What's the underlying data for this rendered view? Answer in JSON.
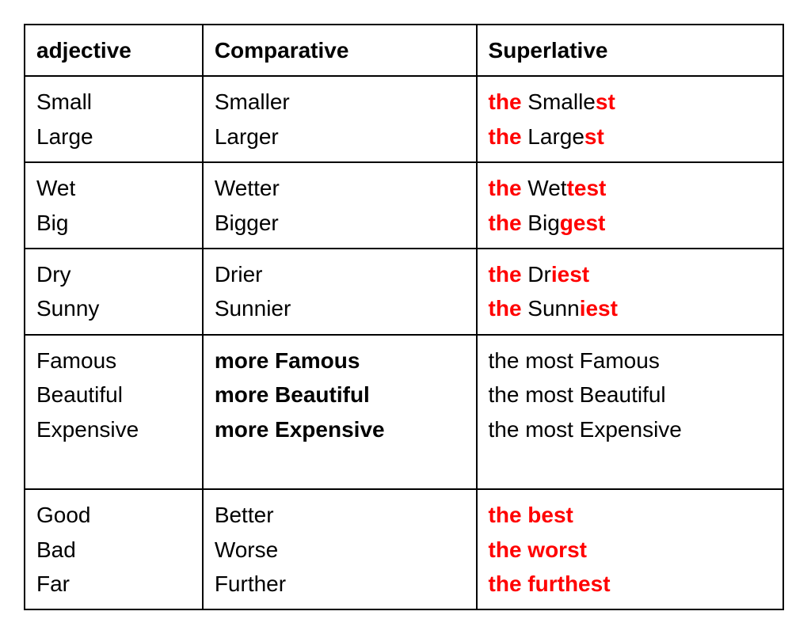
{
  "table": {
    "columns": [
      "adjective",
      "Comparative",
      "Superlative"
    ],
    "col_widths": [
      "33%",
      "33%",
      "34%"
    ],
    "border_color": "#000000",
    "background_color": "#ffffff",
    "text_color": "#000000",
    "highlight_color": "#ff0000",
    "fontsize": 28,
    "groups": [
      {
        "adj": [
          {
            "text": "Small"
          },
          {
            "text": "Large"
          }
        ],
        "comp": [
          {
            "text": "Smaller"
          },
          {
            "text": "Larger"
          }
        ],
        "sup": [
          {
            "segments": [
              {
                "t": "the ",
                "red": true,
                "bold": true
              },
              {
                "t": "Smalle"
              },
              {
                "t": "st",
                "red": true,
                "bold": true
              }
            ]
          },
          {
            "segments": [
              {
                "t": "the ",
                "red": true,
                "bold": true
              },
              {
                "t": "Large"
              },
              {
                "t": "st",
                "red": true,
                "bold": true
              }
            ]
          }
        ]
      },
      {
        "adj": [
          {
            "text": "Wet"
          },
          {
            "text": "Big"
          }
        ],
        "comp": [
          {
            "text": "Wetter"
          },
          {
            "text": "Bigger"
          }
        ],
        "sup": [
          {
            "segments": [
              {
                "t": "the ",
                "red": true,
                "bold": true
              },
              {
                "t": "Wet"
              },
              {
                "t": "test",
                "red": true,
                "bold": true
              }
            ]
          },
          {
            "segments": [
              {
                "t": "the ",
                "red": true,
                "bold": true
              },
              {
                "t": "Big"
              },
              {
                "t": "gest",
                "red": true,
                "bold": true
              }
            ]
          }
        ]
      },
      {
        "adj": [
          {
            "text": "Dry"
          },
          {
            "text": "Sunny"
          }
        ],
        "comp": [
          {
            "text": "Drier"
          },
          {
            "text": "Sunnier"
          }
        ],
        "sup": [
          {
            "segments": [
              {
                "t": "the ",
                "red": true,
                "bold": true
              },
              {
                "t": "Dr"
              },
              {
                "t": "iest",
                "red": true,
                "bold": true
              }
            ]
          },
          {
            "segments": [
              {
                "t": "the ",
                "red": true,
                "bold": true
              },
              {
                "t": "Sunn"
              },
              {
                "t": "iest",
                "red": true,
                "bold": true
              }
            ]
          }
        ]
      },
      {
        "adj": [
          {
            "text": "Famous"
          },
          {
            "text": "Beautiful"
          },
          {
            "text": "Expensive"
          },
          {
            "text": " "
          }
        ],
        "comp": [
          {
            "text": "more Famous",
            "bold": true
          },
          {
            "text": "more Beautiful",
            "bold": true
          },
          {
            "text": "more Expensive",
            "bold": true
          },
          {
            "text": " "
          }
        ],
        "sup": [
          {
            "segments": [
              {
                "t": "the most Famous"
              }
            ]
          },
          {
            "segments": [
              {
                "t": "the most Beautiful"
              }
            ]
          },
          {
            "segments": [
              {
                "t": "the most Expensive"
              }
            ]
          },
          {
            "segments": [
              {
                "t": " "
              }
            ]
          }
        ]
      },
      {
        "adj": [
          {
            "text": "Good"
          },
          {
            "text": "Bad"
          },
          {
            "text": "Far"
          }
        ],
        "comp": [
          {
            "text": "Better"
          },
          {
            "text": "Worse"
          },
          {
            "text": "Further"
          }
        ],
        "sup": [
          {
            "segments": [
              {
                "t": "the best",
                "red": true,
                "bold": true
              }
            ]
          },
          {
            "segments": [
              {
                "t": "the worst",
                "red": true,
                "bold": true
              }
            ]
          },
          {
            "segments": [
              {
                "t": "the furthest",
                "red": true,
                "bold": true
              }
            ]
          }
        ]
      }
    ]
  }
}
